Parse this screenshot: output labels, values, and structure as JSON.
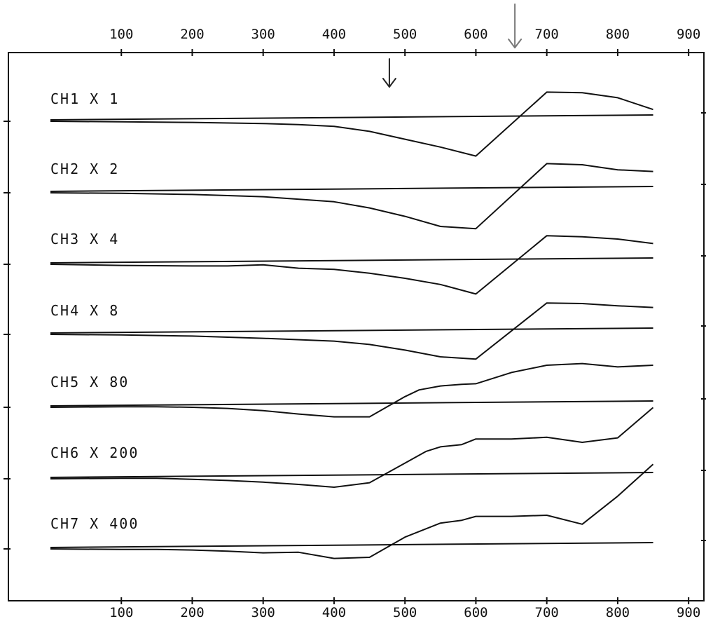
{
  "chart_data": {
    "type": "line",
    "x_ticks_top": [
      "100",
      "200",
      "300",
      "400",
      "500",
      "600",
      "700",
      "800",
      "900"
    ],
    "x_ticks_bottom": [
      "100",
      "200",
      "300",
      "400",
      "500",
      "600",
      "700",
      "800",
      "900"
    ],
    "xlim": [
      0,
      900
    ],
    "x_tick_values": [
      100,
      200,
      300,
      400,
      500,
      600,
      700,
      800,
      900
    ],
    "grid": false,
    "legend": "none",
    "markers": [
      {
        "x": 478,
        "kind": "arrow",
        "color": "#222222"
      },
      {
        "x": 655,
        "kind": "arrow",
        "color": "#777777"
      }
    ],
    "series": [
      {
        "name": "CH1 X 1",
        "x": [
          0,
          100,
          200,
          300,
          350,
          400,
          450,
          500,
          550,
          600,
          700,
          750,
          800,
          850
        ],
        "y": [
          0,
          -0.05,
          -0.1,
          -0.2,
          -0.3,
          -0.45,
          -0.9,
          -1.6,
          -2.3,
          -3.1,
          2.6,
          2.55,
          2.1,
          1.05
        ]
      },
      {
        "name": "CH2 X 2",
        "x": [
          0,
          100,
          200,
          300,
          400,
          450,
          500,
          550,
          600,
          700,
          750,
          800,
          850
        ],
        "y": [
          0,
          -0.05,
          -0.15,
          -0.35,
          -0.8,
          -1.35,
          -2.1,
          -3.0,
          -3.2,
          2.6,
          2.5,
          2.05,
          1.9
        ]
      },
      {
        "name": "CH3 X 4",
        "x": [
          0,
          100,
          200,
          250,
          300,
          350,
          400,
          450,
          500,
          550,
          600,
          700,
          750,
          800,
          850
        ],
        "y": [
          0,
          -0.1,
          -0.15,
          -0.15,
          -0.05,
          -0.35,
          -0.45,
          -0.8,
          -1.25,
          -1.8,
          -2.65,
          2.55,
          2.45,
          2.25,
          1.85
        ]
      },
      {
        "name": "CH4 X 8",
        "x": [
          0,
          100,
          200,
          300,
          400,
          450,
          500,
          550,
          600,
          700,
          750,
          800,
          850
        ],
        "y": [
          0,
          -0.05,
          -0.15,
          -0.35,
          -0.6,
          -0.9,
          -1.4,
          -2.0,
          -2.2,
          2.8,
          2.75,
          2.55,
          2.4
        ]
      },
      {
        "name": "CH5 X 80",
        "x": [
          0,
          100,
          150,
          200,
          250,
          300,
          350,
          400,
          450,
          500,
          520,
          550,
          580,
          600,
          650,
          700,
          750,
          800,
          850
        ],
        "y": [
          0,
          0.05,
          0.05,
          0.0,
          -0.1,
          -0.3,
          -0.6,
          -0.85,
          -0.85,
          0.95,
          1.55,
          1.9,
          2.05,
          2.1,
          3.1,
          3.75,
          3.9,
          3.6,
          3.75
        ]
      },
      {
        "name": "CH6 X 200",
        "x": [
          0,
          100,
          150,
          200,
          250,
          300,
          350,
          400,
          450,
          500,
          530,
          550,
          580,
          600,
          650,
          700,
          750,
          800,
          850
        ],
        "y": [
          0,
          0.05,
          0.05,
          -0.05,
          -0.15,
          -0.3,
          -0.5,
          -0.75,
          -0.35,
          1.4,
          2.45,
          2.85,
          3.05,
          3.55,
          3.55,
          3.7,
          3.25,
          3.65,
          6.35
        ]
      },
      {
        "name": "CH7 X 400",
        "x": [
          0,
          100,
          150,
          200,
          250,
          300,
          350,
          400,
          450,
          500,
          550,
          580,
          600,
          650,
          700,
          750,
          800,
          850
        ],
        "y": [
          0,
          -0.05,
          -0.05,
          -0.1,
          -0.2,
          -0.35,
          -0.3,
          -0.85,
          -0.75,
          1.05,
          2.3,
          2.55,
          2.9,
          2.9,
          3.0,
          2.2,
          4.7,
          7.55
        ]
      }
    ]
  }
}
